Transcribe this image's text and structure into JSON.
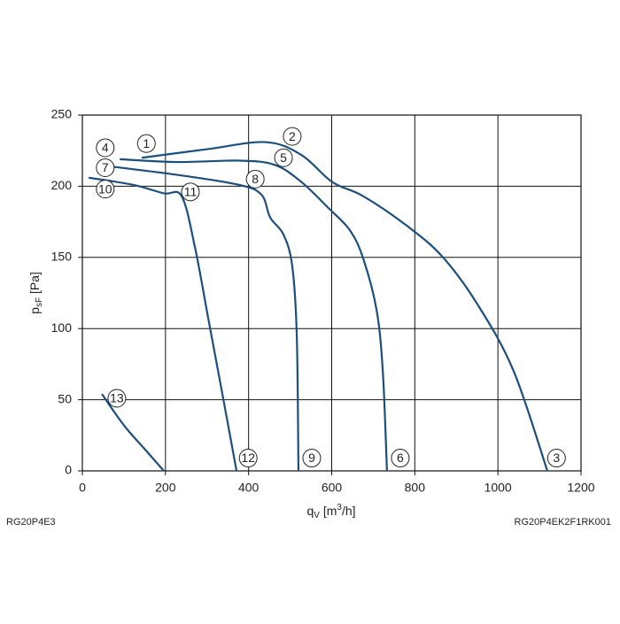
{
  "chart_data": {
    "type": "line",
    "x_label": {
      "base": "q",
      "sub": "V",
      "unit_open": " [m",
      "sup": "3",
      "unit_close": "/h]"
    },
    "y_label": {
      "base": "p",
      "sub": "sF",
      "unit": " [Pa]"
    },
    "footer_left": "RG20P4E3",
    "footer_right": "RG20P4EK2F1RK001",
    "color": "#1d4f7e",
    "grid": true,
    "xlim": [
      0,
      1200
    ],
    "xticks": [
      0,
      200,
      400,
      600,
      800,
      1000,
      1200
    ],
    "ylim": [
      0,
      250
    ],
    "yticks": [
      0,
      50,
      100,
      150,
      200,
      250
    ],
    "series": [
      {
        "x": [
          143,
          300,
          441,
          527,
          601,
          676,
          782,
          868,
          953,
          1038,
          1119
        ],
        "values": [
          220,
          226,
          231,
          222,
          203,
          193,
          172,
          150,
          116,
          70,
          0
        ]
      },
      {
        "x": [
          90,
          228,
          377,
          463,
          527,
          591,
          644,
          676,
          708,
          723,
          733
        ],
        "values": [
          219,
          217,
          218,
          215,
          203,
          185,
          169,
          149,
          113,
          70,
          0
        ]
      },
      {
        "x": [
          36,
          228,
          377,
          431,
          452,
          484,
          505,
          516,
          520
        ],
        "values": [
          215,
          208,
          201,
          194,
          178,
          166,
          144,
          95,
          0
        ]
      },
      {
        "x": [
          15,
          122,
          196,
          239,
          271,
          303,
          335,
          371
        ],
        "values": [
          206,
          201,
          195,
          193,
          157,
          107,
          57,
          0
        ]
      },
      {
        "x": [
          47,
          100,
          154,
          196
        ],
        "values": [
          54,
          32,
          14,
          0
        ]
      }
    ],
    "annotations": [
      {
        "text": "1",
        "x": 154,
        "y": 230
      },
      {
        "text": "2",
        "x": 505,
        "y": 235
      },
      {
        "text": "3",
        "x": 1141,
        "y": 9
      },
      {
        "text": "4",
        "x": 55,
        "y": 227
      },
      {
        "text": "5",
        "x": 484,
        "y": 220
      },
      {
        "text": "6",
        "x": 765,
        "y": 9
      },
      {
        "text": "7",
        "x": 55,
        "y": 213
      },
      {
        "text": "8",
        "x": 416,
        "y": 205
      },
      {
        "text": "9",
        "x": 552,
        "y": 9
      },
      {
        "text": "10",
        "x": 55,
        "y": 198
      },
      {
        "text": "11",
        "x": 260,
        "y": 196
      },
      {
        "text": "12",
        "x": 399,
        "y": 9
      },
      {
        "text": "13",
        "x": 83,
        "y": 51
      }
    ]
  }
}
